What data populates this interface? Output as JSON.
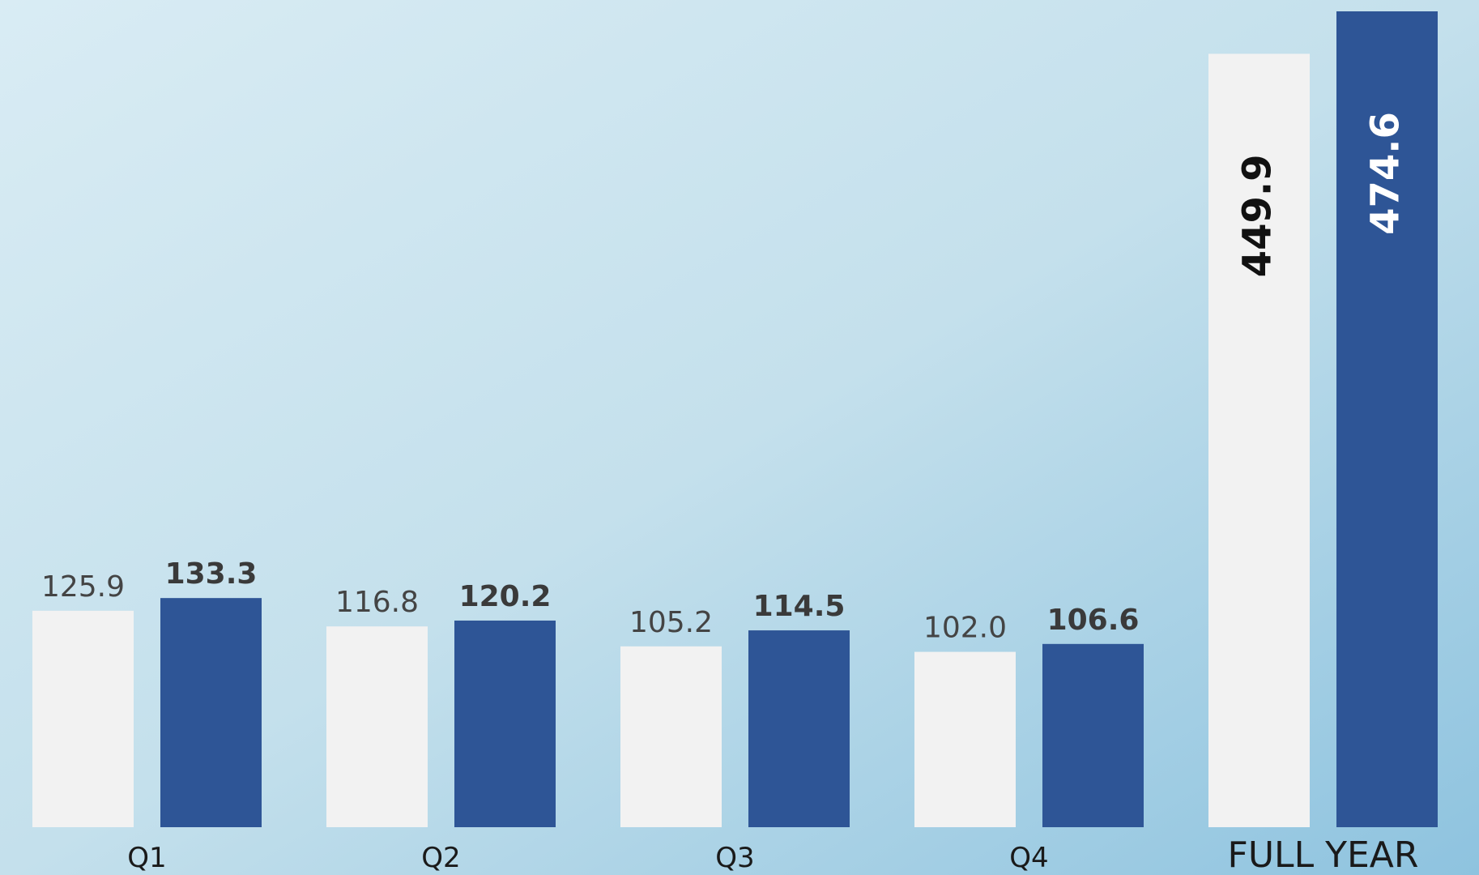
{
  "chart_data": {
    "type": "bar",
    "categories": [
      "Q1",
      "Q2",
      "Q3",
      "Q4",
      "FULL YEAR"
    ],
    "series": [
      {
        "color": "#f2f2f2",
        "values": [
          125.9,
          116.8,
          105.2,
          102.0,
          449.9
        ],
        "value_labels": [
          "125.9",
          "116.8",
          "105.2",
          "102.0",
          "449.9"
        ]
      },
      {
        "color": "#2e5596",
        "values": [
          133.3,
          120.2,
          114.5,
          106.6,
          474.6
        ],
        "value_labels": [
          "133.3",
          "120.2",
          "114.5",
          "106.6",
          "474.6"
        ]
      }
    ]
  }
}
